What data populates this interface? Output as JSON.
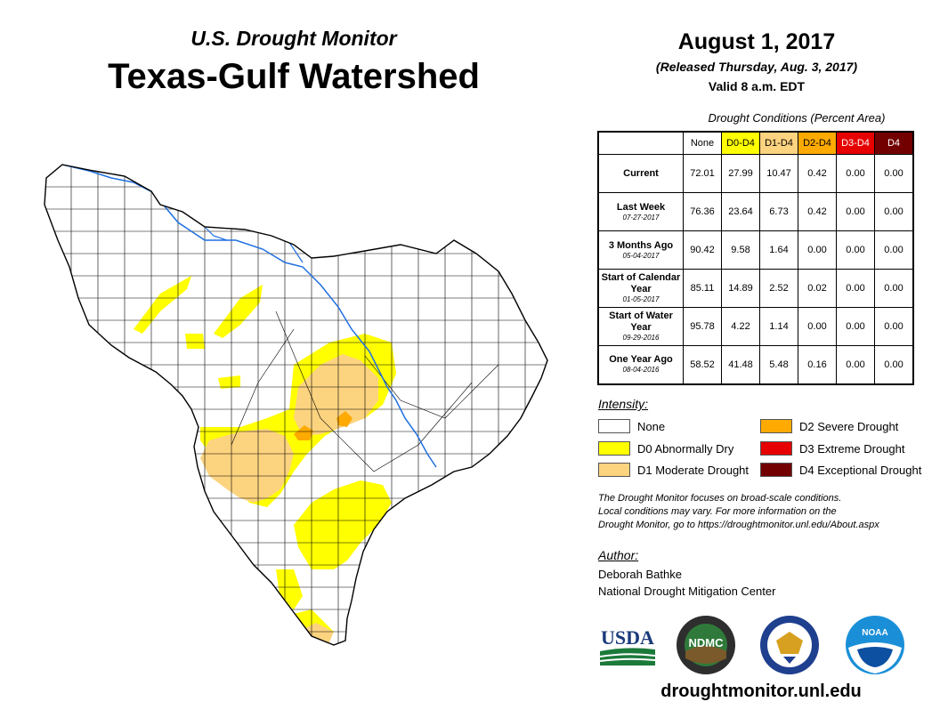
{
  "header": {
    "subtitle": "U.S. Drought Monitor",
    "title": "Texas-Gulf Watershed"
  },
  "info": {
    "date": "August 1, 2017",
    "released": "(Released Thursday, Aug. 3, 2017)",
    "valid": "Valid 8 a.m. EDT"
  },
  "table": {
    "title": "Drought Conditions (Percent Area)",
    "columns": [
      {
        "label": "None",
        "bg": "#ffffff",
        "fg": "#000000"
      },
      {
        "label": "D0-D4",
        "bg": "#ffff00",
        "fg": "#000000"
      },
      {
        "label": "D1-D4",
        "bg": "#fcd37f",
        "fg": "#000000"
      },
      {
        "label": "D2-D4",
        "bg": "#ffaa00",
        "fg": "#000000"
      },
      {
        "label": "D3-D4",
        "bg": "#e60000",
        "fg": "#ffffff"
      },
      {
        "label": "D4",
        "bg": "#730000",
        "fg": "#ffffff"
      }
    ],
    "rows": [
      {
        "label": "Current",
        "date": "",
        "values": [
          "72.01",
          "27.99",
          "10.47",
          "0.42",
          "0.00",
          "0.00"
        ]
      },
      {
        "label": "Last Week",
        "date": "07-27-2017",
        "values": [
          "76.36",
          "23.64",
          "6.73",
          "0.42",
          "0.00",
          "0.00"
        ]
      },
      {
        "label": "3 Months Ago",
        "date": "05-04-2017",
        "values": [
          "90.42",
          "9.58",
          "1.64",
          "0.00",
          "0.00",
          "0.00"
        ]
      },
      {
        "label": "Start of Calendar Year",
        "date": "01-05-2017",
        "values": [
          "85.11",
          "14.89",
          "2.52",
          "0.02",
          "0.00",
          "0.00"
        ]
      },
      {
        "label": "Start of Water Year",
        "date": "09-29-2016",
        "values": [
          "95.78",
          "4.22",
          "1.14",
          "0.00",
          "0.00",
          "0.00"
        ]
      },
      {
        "label": "One Year Ago",
        "date": "08-04-2016",
        "values": [
          "58.52",
          "41.48",
          "5.48",
          "0.16",
          "0.00",
          "0.00"
        ]
      }
    ]
  },
  "legend": {
    "title": "Intensity:",
    "items": [
      {
        "label": "None",
        "color": "#ffffff"
      },
      {
        "label": "D0 Abnormally Dry",
        "color": "#ffff00"
      },
      {
        "label": "D1 Moderate Drought",
        "color": "#fcd37f"
      },
      {
        "label": "D2 Severe Drought",
        "color": "#ffaa00"
      },
      {
        "label": "D3 Extreme Drought",
        "color": "#e60000"
      },
      {
        "label": "D4 Exceptional Drought",
        "color": "#730000"
      }
    ]
  },
  "note": {
    "line1": "The Drought Monitor focuses on broad-scale conditions.",
    "line2": "Local conditions may vary. For more information on the",
    "line3": "Drought Monitor, go to https://droughtmonitor.unl.edu/About.aspx"
  },
  "author": {
    "title": "Author:",
    "name": "Deborah Bathke",
    "org": "National Drought Mitigation Center"
  },
  "logos": {
    "usda": "USDA",
    "ndmc": "NDMC",
    "noaa": "NOAA"
  },
  "footer": {
    "url": "droughtmonitor.unl.edu"
  },
  "map": {
    "river_color": "#1f6fe0",
    "boundary_color": "#000000"
  }
}
